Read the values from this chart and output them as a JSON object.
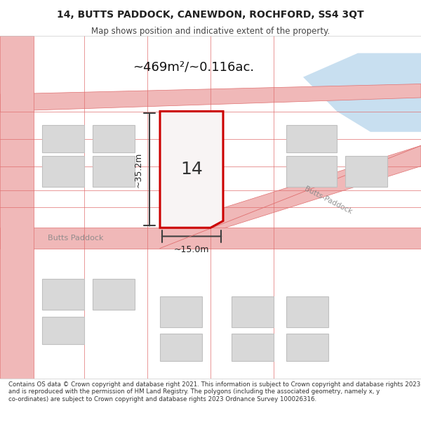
{
  "title_line1": "14, BUTTS PADDOCK, CANEWDON, ROCHFORD, SS4 3QT",
  "title_line2": "Map shows position and indicative extent of the property.",
  "area_label": "~469m²/~0.116ac.",
  "plot_number": "14",
  "dim_height": "~35.2m",
  "dim_width": "~15.0m",
  "street_name1": "Butts Paddock",
  "street_name2": "Butts-Paddock",
  "footer_text": "Contains OS data © Crown copyright and database right 2021. This information is subject to Crown copyright and database rights 2023 and is reproduced with the permission of HM Land Registry. The polygons (including the associated geometry, namely x, y co-ordinates) are subject to Crown copyright and database rights 2023 Ordnance Survey 100026316.",
  "bg_color": "#f5f5f5",
  "map_bg": "#ffffff",
  "road_color": "#f0b8b8",
  "road_line_color": "#e07070",
  "plot_outline_color": "#cc0000",
  "plot_fill_color": "#f5f0f0",
  "building_fill": "#d8d8d8",
  "building_edge": "#c0c0c0",
  "water_color": "#c8dff0",
  "text_color": "#333333",
  "dim_line_color": "#404040",
  "street_label_color": "#888888",
  "header_bg": "#ffffff",
  "footer_bg": "#ffffff"
}
